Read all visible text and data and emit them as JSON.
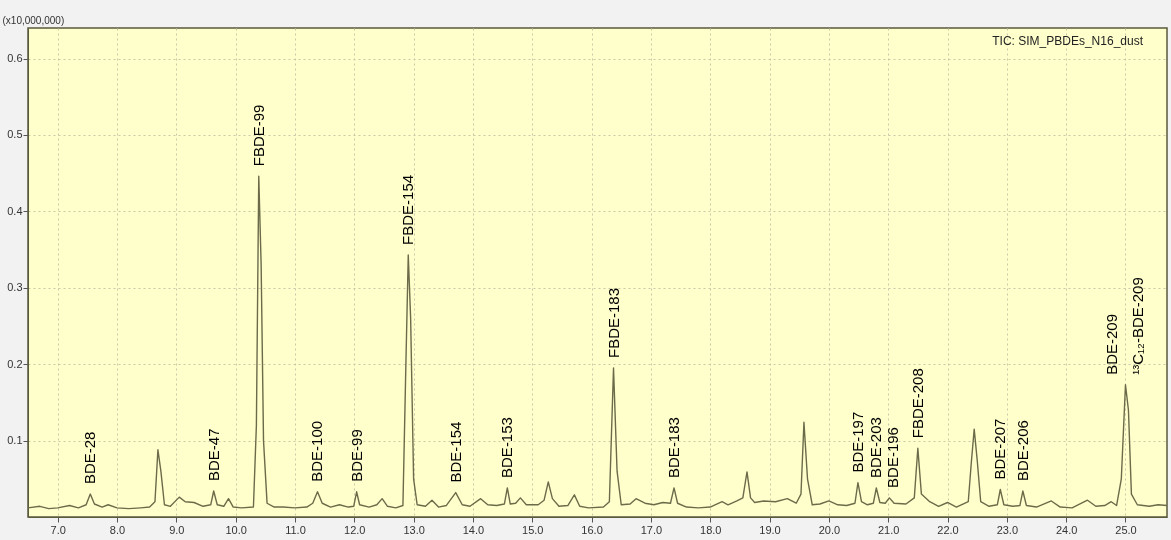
{
  "chart_data": {
    "type": "line",
    "ylabel": "(x10,000,000)",
    "x": [
      6.5,
      6.7,
      6.85,
      7.0,
      7.2,
      7.35,
      7.48,
      7.55,
      7.62,
      7.75,
      7.85,
      8.0,
      8.2,
      8.4,
      8.55,
      8.64,
      8.69,
      8.74,
      8.8,
      8.9,
      9.05,
      9.15,
      9.3,
      9.45,
      9.58,
      9.63,
      9.69,
      9.8,
      9.88,
      9.96,
      10.1,
      10.3,
      10.35,
      10.39,
      10.43,
      10.47,
      10.53,
      10.65,
      10.8,
      11.0,
      11.2,
      11.3,
      11.38,
      11.46,
      11.6,
      11.75,
      11.9,
      11.99,
      12.04,
      12.09,
      12.25,
      12.38,
      12.47,
      12.56,
      12.7,
      12.82,
      12.87,
      12.91,
      12.95,
      13.0,
      13.06,
      13.2,
      13.31,
      13.42,
      13.55,
      13.71,
      13.82,
      13.95,
      14.13,
      14.25,
      14.4,
      14.53,
      14.58,
      14.63,
      14.72,
      14.8,
      14.9,
      15.1,
      15.2,
      15.27,
      15.34,
      15.45,
      15.6,
      15.71,
      15.8,
      15.95,
      16.2,
      16.3,
      16.37,
      16.43,
      16.5,
      16.65,
      16.75,
      16.9,
      17.05,
      17.2,
      17.33,
      17.39,
      17.45,
      17.6,
      17.8,
      18.0,
      18.2,
      18.3,
      18.45,
      18.55,
      18.62,
      18.68,
      18.75,
      18.9,
      19.1,
      19.3,
      19.45,
      19.53,
      19.58,
      19.64,
      19.72,
      19.85,
      20.0,
      20.15,
      20.3,
      20.44,
      20.49,
      20.55,
      20.65,
      20.75,
      20.8,
      20.86,
      20.95,
      21.02,
      21.1,
      21.3,
      21.44,
      21.5,
      21.56,
      21.7,
      21.85,
      22.0,
      22.15,
      22.35,
      22.4,
      22.45,
      22.5,
      22.56,
      22.7,
      22.84,
      22.89,
      22.95,
      23.1,
      23.22,
      23.27,
      23.33,
      23.5,
      23.75,
      23.9,
      24.1,
      24.36,
      24.5,
      24.65,
      24.76,
      24.85,
      24.93,
      25.0,
      25.05,
      25.1,
      25.2,
      25.4,
      25.55,
      25.7
    ],
    "series": [
      {
        "color": "#6b6b4a",
        "values": [
          0.012,
          0.014,
          0.011,
          0.012,
          0.015,
          0.012,
          0.016,
          0.03,
          0.017,
          0.013,
          0.016,
          0.012,
          0.011,
          0.012,
          0.013,
          0.02,
          0.088,
          0.06,
          0.016,
          0.014,
          0.026,
          0.02,
          0.019,
          0.014,
          0.016,
          0.034,
          0.016,
          0.014,
          0.024,
          0.013,
          0.012,
          0.013,
          0.12,
          0.446,
          0.33,
          0.1,
          0.018,
          0.013,
          0.013,
          0.012,
          0.013,
          0.018,
          0.033,
          0.018,
          0.013,
          0.016,
          0.013,
          0.014,
          0.033,
          0.016,
          0.013,
          0.016,
          0.024,
          0.014,
          0.012,
          0.015,
          0.2,
          0.343,
          0.26,
          0.05,
          0.016,
          0.014,
          0.022,
          0.013,
          0.015,
          0.032,
          0.016,
          0.014,
          0.024,
          0.016,
          0.015,
          0.017,
          0.038,
          0.017,
          0.018,
          0.025,
          0.016,
          0.016,
          0.022,
          0.046,
          0.024,
          0.014,
          0.015,
          0.029,
          0.014,
          0.012,
          0.013,
          0.02,
          0.195,
          0.06,
          0.016,
          0.017,
          0.024,
          0.018,
          0.016,
          0.019,
          0.018,
          0.038,
          0.018,
          0.013,
          0.012,
          0.013,
          0.02,
          0.016,
          0.021,
          0.025,
          0.059,
          0.025,
          0.019,
          0.021,
          0.02,
          0.024,
          0.018,
          0.03,
          0.124,
          0.05,
          0.016,
          0.017,
          0.021,
          0.016,
          0.015,
          0.018,
          0.045,
          0.02,
          0.016,
          0.018,
          0.038,
          0.019,
          0.018,
          0.025,
          0.018,
          0.017,
          0.025,
          0.09,
          0.03,
          0.02,
          0.014,
          0.019,
          0.013,
          0.02,
          0.07,
          0.115,
          0.075,
          0.02,
          0.014,
          0.016,
          0.036,
          0.016,
          0.014,
          0.015,
          0.034,
          0.015,
          0.013,
          0.021,
          0.013,
          0.012,
          0.022,
          0.014,
          0.015,
          0.02,
          0.015,
          0.05,
          0.173,
          0.14,
          0.03,
          0.016,
          0.014,
          0.016,
          0.015
        ]
      }
    ],
    "xlim": [
      6.5,
      25.7
    ],
    "xticks": [
      {
        "value": 7,
        "label": "7.0"
      },
      {
        "value": 8,
        "label": "8.0"
      },
      {
        "value": 9,
        "label": "9.0"
      },
      {
        "value": 10,
        "label": "10.0"
      },
      {
        "value": 11,
        "label": "11.0"
      },
      {
        "value": 12,
        "label": "12.0"
      },
      {
        "value": 13,
        "label": "13.0"
      },
      {
        "value": 14,
        "label": "14.0"
      },
      {
        "value": 15,
        "label": "15.0"
      },
      {
        "value": 16,
        "label": "16.0"
      },
      {
        "value": 17,
        "label": "17.0"
      },
      {
        "value": 18,
        "label": "18.0"
      },
      {
        "value": 19,
        "label": "19.0"
      },
      {
        "value": 20,
        "label": "20.0"
      },
      {
        "value": 21,
        "label": "21.0"
      },
      {
        "value": 22,
        "label": "22.0"
      },
      {
        "value": 23,
        "label": "23.0"
      },
      {
        "value": 24,
        "label": "24.0"
      },
      {
        "value": 25,
        "label": "25.0"
      }
    ],
    "ylim": [
      0,
      0.64
    ],
    "yticks": [
      0.1,
      0.2,
      0.3,
      0.4,
      0.5,
      0.6
    ],
    "grid": true,
    "annotations": [
      {
        "text": "BDE-28",
        "x": 7.55,
        "y": 0.03
      },
      {
        "text": "BDE-47",
        "x": 9.63,
        "y": 0.034
      },
      {
        "text": "FBDE-99",
        "x": 10.39,
        "y": 0.446
      },
      {
        "text": "BDE-100",
        "x": 11.38,
        "y": 0.033
      },
      {
        "text": "BDE-99",
        "x": 12.04,
        "y": 0.033
      },
      {
        "text": "FBDE-154",
        "x": 12.91,
        "y": 0.343
      },
      {
        "text": "BDE-154",
        "x": 13.71,
        "y": 0.032
      },
      {
        "text": "BDE-153",
        "x": 14.58,
        "y": 0.038
      },
      {
        "text": "FBDE-183",
        "x": 16.37,
        "y": 0.195
      },
      {
        "text": "BDE-183",
        "x": 17.39,
        "y": 0.038
      },
      {
        "text": "BDE-197",
        "x": 20.49,
        "y": 0.045
      },
      {
        "text": "BDE-203",
        "x": 20.8,
        "y": 0.038
      },
      {
        "text": "BDE-196",
        "x": 21.08,
        "y": 0.025
      },
      {
        "text": "FBDE-208",
        "x": 21.5,
        "y": 0.09
      },
      {
        "text": "BDE-207",
        "x": 22.89,
        "y": 0.036
      },
      {
        "text": "BDE-206",
        "x": 23.27,
        "y": 0.034
      },
      {
        "text": "BDE-209",
        "x": 25.0,
        "y": 0.173
      },
      {
        "text": "¹³C₁₂-BDE-209",
        "x": 25.0,
        "y": 0.173
      },
      "TIC: SIM_PBDEs_N16_dust"
    ]
  }
}
